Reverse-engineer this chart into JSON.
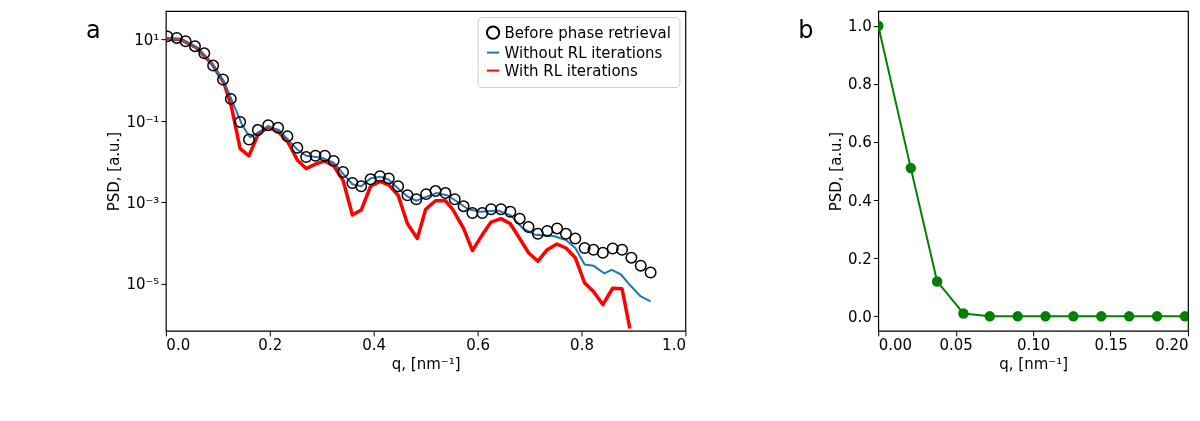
{
  "chart_data": [
    {
      "type": "line",
      "title": "a",
      "xlabel": "q, [nm⁻¹]",
      "ylabel": "PSD, [a.u.]",
      "log": "y",
      "legend": "top right",
      "xlim": [
        0,
        1
      ],
      "xticks": [
        {
          "value": 0,
          "label": "0.0"
        },
        0.2,
        0.4,
        0.6,
        0.8,
        {
          "value": 1,
          "label": "1.0"
        }
      ],
      "ylim": [
        7e-07,
        50
      ],
      "yticks": [
        {
          "value": 10,
          "label": "10¹"
        },
        {
          "value": 0.1,
          "label": "10⁻¹"
        },
        {
          "value": 0.001,
          "label": "10⁻³"
        },
        {
          "value": 1e-05,
          "label": "10⁻⁵"
        }
      ],
      "series": [
        {
          "name": "Before phase retrieval",
          "type": "scatter",
          "color": "#000000",
          "x": [
            0.003,
            0.021,
            0.038,
            0.056,
            0.074,
            0.091,
            0.11,
            0.125,
            0.143,
            0.16,
            0.177,
            0.197,
            0.216,
            0.234,
            0.253,
            0.27,
            0.288,
            0.306,
            0.323,
            0.341,
            0.359,
            0.376,
            0.394,
            0.412,
            0.429,
            0.447,
            0.465,
            0.482,
            0.501,
            0.519,
            0.538,
            0.556,
            0.573,
            0.59,
            0.609,
            0.626,
            0.645,
            0.663,
            0.681,
            0.698,
            0.716,
            0.734,
            0.753,
            0.77,
            0.788,
            0.806,
            0.823,
            0.841,
            0.86,
            0.878,
            0.896,
            0.914,
            0.933
          ],
          "values": [
            12,
            11,
            9.1,
            6.9,
            4.6,
            2.3,
            1.05,
            0.35,
            0.095,
            0.035,
            0.06,
            0.079,
            0.068,
            0.042,
            0.022,
            0.013,
            0.014,
            0.014,
            0.0105,
            0.0056,
            0.003,
            0.0025,
            0.0037,
            0.0044,
            0.0039,
            0.0025,
            0.0015,
            0.0012,
            0.0016,
            0.0019,
            0.0017,
            0.0012,
            0.00081,
            0.00055,
            0.00055,
            0.00068,
            0.00068,
            0.00059,
            0.0004,
            0.00025,
            0.00017,
            0.0002,
            0.00023,
            0.00017,
            0.00013,
            7.6e-05,
            6.9e-05,
            5.8e-05,
            7.4e-05,
            6.9e-05,
            4.4e-05,
            2.8e-05,
            1.9e-05
          ]
        },
        {
          "name": "Without RL iterations",
          "type": "line",
          "color": "#1f77b4",
          "x": [
            0.003,
            0.029,
            0.059,
            0.088,
            0.112,
            0.129,
            0.147,
            0.162,
            0.18,
            0.197,
            0.218,
            0.235,
            0.253,
            0.27,
            0.3,
            0.323,
            0.341,
            0.359,
            0.376,
            0.394,
            0.412,
            0.429,
            0.447,
            0.465,
            0.482,
            0.52,
            0.541,
            0.558,
            0.582,
            0.605,
            0.64,
            0.664,
            0.687,
            0.711,
            0.746,
            0.77,
            0.788,
            0.806,
            0.823,
            0.844,
            0.858,
            0.876,
            0.894,
            0.914,
            0.933
          ],
          "values": [
            10.5,
            10,
            6.3,
            2.6,
            0.93,
            0.28,
            0.079,
            0.04,
            0.055,
            0.072,
            0.06,
            0.035,
            0.02,
            0.014,
            0.0126,
            0.0095,
            0.0051,
            0.0028,
            0.0025,
            0.0039,
            0.0043,
            0.0036,
            0.0022,
            0.0014,
            0.0011,
            0.0017,
            0.0015,
            0.0011,
            0.00068,
            0.00059,
            0.00063,
            0.00048,
            0.00023,
            0.00016,
            0.00015,
            0.00012,
            7.6e-05,
            3e-05,
            2.8e-05,
            1.8e-05,
            2.2e-05,
            1.7e-05,
            9.1e-06,
            4.9e-06,
            3.7e-06
          ]
        },
        {
          "name": "With RL iterations",
          "type": "line",
          "color": "#ff0000",
          "x": [
            0.0,
            0.029,
            0.059,
            0.088,
            0.112,
            0.126,
            0.143,
            0.16,
            0.177,
            0.197,
            0.216,
            0.234,
            0.253,
            0.27,
            0.288,
            0.306,
            0.323,
            0.341,
            0.359,
            0.376,
            0.394,
            0.412,
            0.429,
            0.447,
            0.465,
            0.484,
            0.5,
            0.519,
            0.538,
            0.552,
            0.573,
            0.59,
            0.609,
            0.626,
            0.645,
            0.663,
            0.681,
            0.698,
            0.716,
            0.734,
            0.753,
            0.77,
            0.788,
            0.806,
            0.823,
            0.841,
            0.86,
            0.878,
            0.893
          ],
          "values": [
            10.5,
            10,
            6.3,
            2.6,
            0.85,
            0.23,
            0.021,
            0.014,
            0.046,
            0.072,
            0.055,
            0.032,
            0.011,
            0.0068,
            0.0087,
            0.0105,
            0.0079,
            0.0035,
            0.00049,
            0.00065,
            0.0025,
            0.0033,
            0.0027,
            0.0015,
            0.0003,
            0.00013,
            0.00068,
            0.0011,
            0.0011,
            0.00068,
            0.00023,
            6.6e-05,
            0.00016,
            0.00033,
            0.0004,
            0.0003,
            0.00013,
            5.8e-05,
            3.6e-05,
            6.9e-05,
            9.5e-05,
            7.6e-05,
            4.4e-05,
            1.05e-05,
            6.5e-06,
            3.1e-06,
            7.8e-06,
            7.6e-06,
            8e-07
          ]
        }
      ]
    },
    {
      "type": "line",
      "title": "b",
      "xlabel": "q, [nm⁻¹]",
      "ylabel": "PSD, [a.u.]",
      "marker": "circle",
      "xlim": [
        0,
        0.2
      ],
      "xticks": [
        {
          "value": 0,
          "label": "0.00"
        },
        0.05,
        {
          "value": 0.1,
          "label": "0.10"
        },
        0.15,
        {
          "value": 0.2,
          "label": "0.20"
        }
      ],
      "ylim": [
        -0.05,
        1.05
      ],
      "yticks": [
        {
          "value": 0,
          "label": "0.0"
        },
        0.2,
        0.4,
        0.6,
        0.8,
        {
          "value": 1,
          "label": "1.0"
        }
      ],
      "x": [
        0.0,
        0.021,
        0.038,
        0.055,
        0.072,
        0.09,
        0.108,
        0.126,
        0.144,
        0.162,
        0.18,
        0.198
      ],
      "series": [
        {
          "color": "#008000",
          "values": [
            1.0,
            0.51,
            0.12,
            0.01,
            0,
            0,
            0,
            0,
            0,
            0,
            0,
            0
          ]
        }
      ]
    }
  ]
}
